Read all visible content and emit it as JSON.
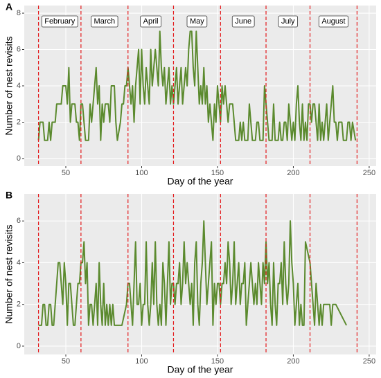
{
  "chart_data": [
    {
      "type": "line",
      "panel_label": "A",
      "x_label": "Day of the year",
      "y_label": "Number of nest revisits",
      "xlim": [
        22.6,
        254.6
      ],
      "ylim": [
        -0.42,
        8.42
      ],
      "xticks": [
        50,
        100,
        150,
        200,
        250
      ],
      "yticks": [
        0,
        2,
        4,
        6,
        8
      ],
      "grid": true,
      "month_lines": [
        32,
        60,
        91,
        121,
        152,
        182,
        211,
        242
      ],
      "month_lines_color": "#e41a1c",
      "month_labels": [
        "February",
        "March",
        "April",
        "May",
        "June",
        "July",
        "August"
      ],
      "x": [
        32,
        33,
        35,
        36,
        38,
        39,
        40,
        41,
        43,
        44,
        47,
        48,
        50,
        51,
        52,
        53,
        54,
        56,
        57,
        58,
        59,
        60,
        61,
        62,
        63,
        65,
        66,
        67,
        69,
        70,
        71,
        72,
        73,
        74,
        75,
        76,
        78,
        79,
        80,
        82,
        83,
        84,
        86,
        87,
        88,
        89,
        90,
        91,
        92,
        93,
        94,
        95,
        96,
        97,
        98,
        99,
        100,
        101,
        102,
        103,
        104,
        105,
        106,
        107,
        108,
        109,
        110,
        111,
        112,
        113,
        114,
        115,
        116,
        117,
        118,
        119,
        120,
        121,
        122,
        123,
        124,
        125,
        126,
        127,
        128,
        129,
        130,
        131,
        132,
        133,
        134,
        135,
        136,
        137,
        138,
        139,
        140,
        141,
        142,
        143,
        144,
        145,
        146,
        147,
        148,
        149,
        150,
        151,
        152,
        153,
        154,
        155,
        156,
        157,
        158,
        160,
        161,
        162,
        164,
        165,
        166,
        167,
        168,
        170,
        171,
        172,
        173,
        175,
        176,
        177,
        178,
        180,
        181,
        182,
        183,
        184,
        186,
        187,
        188,
        190,
        191,
        192,
        193,
        194,
        195,
        196,
        197,
        198,
        199,
        200,
        201,
        202,
        203,
        204,
        205,
        206,
        207,
        208,
        209,
        210,
        211,
        212,
        213,
        214,
        215,
        216,
        217,
        218,
        219,
        220,
        221,
        222,
        223,
        224,
        225,
        226,
        227,
        228,
        229,
        230,
        232,
        233,
        235,
        236,
        237,
        238,
        239,
        241
      ],
      "color": "#5b8a2e",
      "values": [
        1,
        2,
        2,
        1,
        1,
        2,
        1,
        2,
        2,
        3,
        3,
        4,
        4,
        3,
        5,
        2,
        3,
        3,
        2,
        2,
        1,
        3,
        3,
        2,
        1,
        1,
        3,
        2,
        4,
        5,
        3,
        4,
        1,
        3,
        2,
        3,
        3,
        2,
        4,
        4,
        2,
        1,
        2,
        3,
        3,
        4,
        4,
        5,
        4,
        3,
        4,
        2,
        4,
        5,
        6,
        3,
        6,
        4,
        3,
        5,
        4,
        3,
        6,
        4,
        5,
        6,
        5,
        4,
        7,
        5,
        4,
        5,
        3,
        4,
        5,
        3,
        4,
        3,
        4,
        5,
        3,
        4,
        5,
        3,
        4,
        5,
        4,
        6,
        7,
        7,
        5,
        4,
        7,
        5,
        3,
        4,
        3,
        5,
        3,
        4,
        2,
        3,
        2,
        1,
        3,
        2,
        4,
        3,
        2,
        4,
        3,
        4,
        3,
        2,
        3,
        3,
        2,
        1,
        1,
        2,
        1,
        2,
        1,
        1,
        3,
        2,
        1,
        1,
        2,
        2,
        1,
        1,
        4,
        3,
        2,
        1,
        1,
        3,
        1,
        1,
        2,
        1,
        1,
        2,
        2,
        1,
        3,
        2,
        1,
        2,
        1,
        3,
        4,
        2,
        1,
        3,
        1,
        2,
        1,
        3,
        3,
        2,
        3,
        3,
        2,
        1,
        3,
        1,
        2,
        1,
        2,
        3,
        1,
        2,
        3,
        4,
        2,
        2,
        1,
        2,
        2,
        1,
        1,
        2,
        2,
        1,
        2,
        1
      ]
    },
    {
      "type": "line",
      "panel_label": "B",
      "x_label": "Day of the year",
      "y_label": "Number of nest revisits",
      "xlim": [
        22.6,
        254.6
      ],
      "ylim": [
        -0.4,
        7.3
      ],
      "xticks": [
        50,
        100,
        150,
        200,
        250
      ],
      "yticks": [
        0,
        2,
        4,
        6
      ],
      "grid": true,
      "month_lines": [
        32,
        60,
        91,
        121,
        152,
        182,
        211,
        242
      ],
      "month_lines_color": "#e41a1c",
      "x": [
        32,
        34,
        35,
        36,
        37,
        38,
        39,
        40,
        41,
        42,
        43,
        44,
        45,
        46,
        47,
        48,
        49,
        50,
        51,
        52,
        53,
        54,
        55,
        56,
        57,
        58,
        59,
        60,
        61,
        62,
        63,
        64,
        65,
        66,
        67,
        68,
        69,
        70,
        71,
        72,
        73,
        74,
        75,
        76,
        77,
        78,
        79,
        80,
        81,
        82,
        83,
        87,
        90,
        91,
        92,
        93,
        94,
        95,
        96,
        97,
        98,
        99,
        100,
        101,
        102,
        103,
        104,
        105,
        106,
        107,
        108,
        109,
        110,
        111,
        112,
        113,
        114,
        115,
        116,
        117,
        118,
        119,
        120,
        121,
        122,
        123,
        124,
        125,
        126,
        127,
        128,
        129,
        130,
        131,
        132,
        133,
        134,
        135,
        136,
        137,
        138,
        139,
        140,
        141,
        142,
        143,
        144,
        145,
        146,
        147,
        148,
        149,
        150,
        151,
        152,
        153,
        154,
        155,
        156,
        157,
        158,
        159,
        160,
        161,
        162,
        163,
        164,
        165,
        166,
        167,
        168,
        169,
        170,
        171,
        172,
        173,
        174,
        175,
        176,
        177,
        178,
        179,
        180,
        181,
        182,
        183,
        184,
        185,
        186,
        187,
        188,
        189,
        190,
        191,
        192,
        193,
        194,
        195,
        196,
        197,
        198,
        199,
        200,
        201,
        202,
        203,
        204,
        205,
        206,
        207,
        208,
        211,
        212,
        213,
        214,
        215,
        216,
        217,
        218,
        219,
        220,
        222,
        224,
        225,
        226,
        228,
        235
      ],
      "color": "#5b8a2e",
      "values": [
        1,
        1,
        2,
        2,
        1,
        1,
        2,
        2,
        1,
        1,
        2,
        3,
        4,
        4,
        3,
        2,
        4,
        3,
        1,
        3,
        3,
        2,
        1,
        1,
        2,
        3,
        3,
        4,
        4,
        5,
        3,
        4,
        1,
        2,
        2,
        1,
        2,
        3,
        1,
        4,
        2,
        1,
        3,
        1,
        2,
        1,
        2,
        1,
        2,
        1,
        1,
        1,
        2,
        3,
        3,
        2,
        1,
        3,
        5,
        2,
        2,
        3,
        1,
        2,
        2,
        5,
        2,
        1,
        2,
        4,
        2,
        5,
        2,
        1,
        2,
        1,
        4,
        3,
        1,
        3,
        5,
        2,
        3,
        3,
        2,
        3,
        3,
        4,
        2,
        3,
        5,
        3,
        4,
        3,
        2,
        3,
        1,
        4,
        5,
        2,
        1,
        3,
        4,
        6,
        4,
        2,
        3,
        4,
        5,
        1,
        3,
        2,
        3,
        3,
        2,
        3,
        3,
        4,
        3,
        5,
        4,
        2,
        3,
        5,
        2,
        3,
        4,
        2,
        3,
        3,
        4,
        1,
        2,
        3,
        4,
        3,
        2,
        3,
        2,
        4,
        3,
        2,
        4,
        3,
        5,
        3,
        4,
        2,
        1,
        4,
        2,
        1,
        3,
        3,
        4,
        2,
        5,
        3,
        2,
        3,
        6,
        4,
        3,
        1,
        2,
        3,
        1,
        2,
        1,
        1,
        5,
        4,
        3,
        2,
        1,
        3,
        2,
        1,
        2,
        1,
        2,
        2,
        2,
        1,
        2,
        2,
        1
      ]
    }
  ]
}
